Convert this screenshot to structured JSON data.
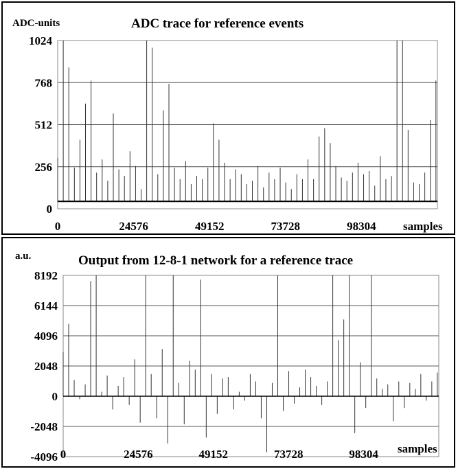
{
  "chart_data": [
    {
      "type": "line",
      "title": "ADC trace for reference events",
      "ylabel": "ADC-units",
      "xlabel": "samples",
      "x_ticks": [
        "0",
        "24576",
        "49152",
        "73728",
        "98304"
      ],
      "x_tick_values": [
        0,
        24576,
        49152,
        73728,
        98304
      ],
      "y_ticks": [
        "0",
        "256",
        "512",
        "768",
        "1024"
      ],
      "y_tick_values": [
        0,
        256,
        512,
        768,
        1024
      ],
      "xlim": [
        0,
        122880
      ],
      "ylim": [
        0,
        1024
      ],
      "grid": true,
      "baseline_value": 45,
      "series": [
        {
          "x": [
            0,
            1800,
            3600,
            5400,
            7200,
            9000,
            10800,
            12600,
            14400,
            16200,
            18000,
            19800,
            21600,
            23400,
            25200,
            27000,
            28800,
            30600,
            32400,
            34200,
            36000,
            37800,
            39600,
            41400,
            43200,
            45000,
            46800,
            48600,
            50400,
            52200,
            54000,
            55800,
            57600,
            59400,
            61200,
            63000,
            64800,
            66600,
            68400,
            70200,
            72000,
            73800,
            75600,
            77400,
            79200,
            81000,
            82800,
            84600,
            86400,
            88200,
            90000,
            91800,
            93600,
            95400,
            97200,
            99000,
            100800,
            102600,
            104400,
            106200,
            108000,
            109800,
            111600,
            113400,
            115200,
            117000,
            118800,
            120600,
            122400
          ],
          "values": [
            310,
            1024,
            860,
            250,
            420,
            640,
            780,
            220,
            300,
            170,
            580,
            240,
            200,
            350,
            260,
            120,
            1024,
            980,
            210,
            600,
            760,
            250,
            180,
            290,
            150,
            200,
            180,
            250,
            520,
            420,
            280,
            180,
            240,
            210,
            150,
            170,
            260,
            130,
            220,
            180,
            250,
            160,
            120,
            210,
            180,
            300,
            180,
            440,
            490,
            400,
            260,
            190,
            170,
            220,
            280,
            210,
            230,
            140,
            320,
            180,
            200,
            1024,
            1024,
            480,
            160,
            150,
            220,
            540,
            780
          ]
        }
      ]
    },
    {
      "type": "line",
      "title": "Output from 12-8-1 network for a reference trace",
      "ylabel": "a.u.",
      "xlabel": "samples",
      "x_ticks": [
        "0",
        "24576",
        "49152",
        "73728",
        "98304"
      ],
      "x_tick_values": [
        0,
        24576,
        49152,
        73728,
        98304
      ],
      "y_ticks": [
        "-4096",
        "-2048",
        "0",
        "2048",
        "4096",
        "6144",
        "8192"
      ],
      "y_tick_values": [
        -4096,
        -2048,
        0,
        2048,
        4096,
        6144,
        8192
      ],
      "xlim": [
        0,
        122880
      ],
      "ylim": [
        -4096,
        8192
      ],
      "grid": true,
      "series": [
        {
          "x": [
            0,
            1800,
            3600,
            5400,
            7200,
            9000,
            10800,
            12600,
            14400,
            16200,
            18000,
            19800,
            21600,
            23400,
            25200,
            27000,
            28800,
            30600,
            32400,
            34200,
            36000,
            37800,
            39600,
            41400,
            43200,
            45000,
            46800,
            48600,
            50400,
            52200,
            54000,
            55800,
            57600,
            59400,
            61200,
            63000,
            64800,
            66600,
            68400,
            70200,
            72000,
            73800,
            75600,
            77400,
            79200,
            81000,
            82800,
            84600,
            86400,
            88200,
            90000,
            91800,
            93600,
            95400,
            97200,
            99000,
            100800,
            102600,
            104400,
            106200,
            108000,
            109800,
            111600,
            113400,
            115200,
            117000,
            118800,
            120600,
            122400
          ],
          "values": [
            3000,
            4900,
            1100,
            -200,
            800,
            7800,
            8192,
            300,
            1400,
            -900,
            700,
            1300,
            -600,
            2500,
            -1800,
            8192,
            1500,
            -1500,
            3200,
            -3200,
            8192,
            900,
            -1900,
            2400,
            1800,
            7900,
            -2800,
            1500,
            -1200,
            1200,
            1300,
            -900,
            300,
            -300,
            1500,
            1000,
            -1500,
            -3800,
            900,
            8192,
            -1000,
            1700,
            -500,
            600,
            1800,
            1300,
            700,
            -600,
            1000,
            8192,
            3800,
            5200,
            8192,
            -2500,
            2300,
            -800,
            8192,
            1200,
            500,
            800,
            -1700,
            1000,
            -800,
            900,
            500,
            1500,
            -300,
            1000,
            1600
          ]
        }
      ]
    }
  ]
}
